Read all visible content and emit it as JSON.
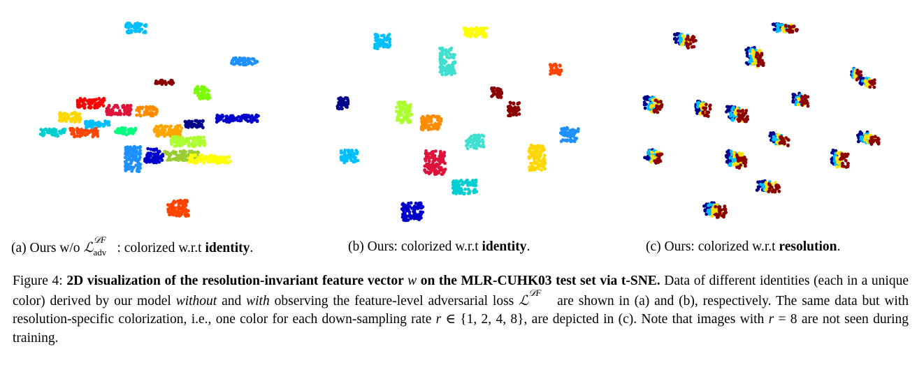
{
  "subcaptions": {
    "a": {
      "prefix": "(a) Ours w/o ",
      "loss_symbol": "ℒ",
      "loss_sup": "𝒟F",
      "loss_sub": "adv",
      "suffix": ": colorized w.r.t ",
      "bold": "identity",
      "end": "."
    },
    "b": {
      "prefix": "(b) Ours: colorized w.r.t ",
      "bold": "identity",
      "end": "."
    },
    "c": {
      "prefix": "(c) Ours: colorized w.r.t ",
      "bold": "resolution",
      "end": "."
    }
  },
  "figure_caption": {
    "label": "Figure 4: ",
    "bold_title": "2D visualization of the resolution-invariant feature vector ",
    "bold_var": "w",
    "bold_title_end": " on the MLR-CUHK03 test set via t-SNE.",
    "t1": " Data of different identities (each in a unique color) derived by our model ",
    "i1": "without",
    "t2": " and ",
    "i2": "with",
    "t3": " observing the feature-level adversarial loss ",
    "t4": " are shown in (a) and (b), respectively. The same data but with resolution-specific colorization, i.e., one color for each down-sampling rate ",
    "r_var": "r",
    "t5": " ∈ {1, 2, 4, 8}, are depicted in (c). Note that images with ",
    "r_var2": "r",
    "t6": " = 8 are not seen during training."
  },
  "resolution_colors": [
    "#00008b",
    "#00bfff",
    "#ffe000",
    "#8b0000"
  ],
  "identity_colors": [
    "#00bfff",
    "#ff4500",
    "#8b0000",
    "#7cfc00",
    "#00008b",
    "#0000cd",
    "#ffd700",
    "#40e0d0",
    "#ff8c00",
    "#adff2f",
    "#1e90ff",
    "#dc143c",
    "#00ced1",
    "#ffa500",
    "#00ff7f",
    "#ff0000",
    "#9acd32",
    "#ffff00"
  ]
}
